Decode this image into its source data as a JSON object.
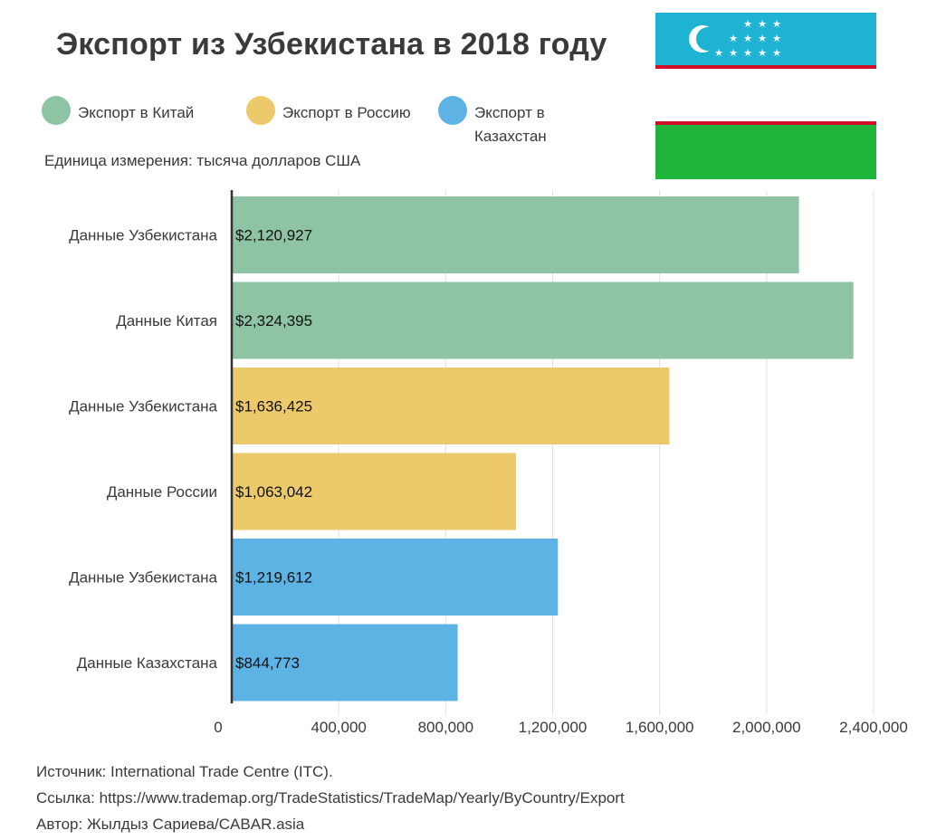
{
  "page": {
    "title": "Экспорт из Узбекистана в 2018 году",
    "unit_label": "Единица измерения: тысяча долларов США",
    "legend": [
      {
        "label": "Экспорт в Китай",
        "color": "#8ec3a4"
      },
      {
        "label": "Экспорт в Россию",
        "color": "#ecc96b"
      },
      {
        "label": "Экспорт в Казахстан",
        "color": "#5db4e4"
      }
    ],
    "footer": {
      "source": "Источник: International Trade Centre (ITC).",
      "link": "Ссылка: https://www.trademap.org/TradeStatistics/TradeMap/Yearly/ByCountry/Export",
      "author": "Автор: Жылдыз Сариева/CABAR.asia"
    },
    "flag": {
      "top": "#1eb3d2",
      "stripe": "#ce1126",
      "middle": "#ffffff",
      "bottom": "#1eb53a",
      "icon": "uzbekistan-flag-icon"
    }
  },
  "chart_data": {
    "type": "bar",
    "orientation": "horizontal",
    "categories": [
      "Данные Узбекистана",
      "Данные Китая",
      "Данные Узбекистана",
      "Данные России",
      "Данные Узбекистана",
      "Данные Казахстана"
    ],
    "values": [
      2120927,
      2324395,
      1636425,
      1063042,
      1219612,
      844773
    ],
    "value_labels": [
      "$2,120,927",
      "$2,324,395",
      "$1,636,425",
      "$1,063,042",
      "$1,219,612",
      "$844,773"
    ],
    "bar_colors": [
      "#8ec3a4",
      "#8ec3a4",
      "#ecc96b",
      "#ecc96b",
      "#5db4e4",
      "#5db4e4"
    ],
    "x_ticks": [
      0,
      400000,
      800000,
      1200000,
      1600000,
      2000000,
      2400000
    ],
    "x_tick_labels": [
      "0",
      "400,000",
      "800,000",
      "1,200,000",
      "1,600,000",
      "2,000,000",
      "2,400,000"
    ],
    "xlim": [
      0,
      2400000
    ],
    "grid": true
  }
}
